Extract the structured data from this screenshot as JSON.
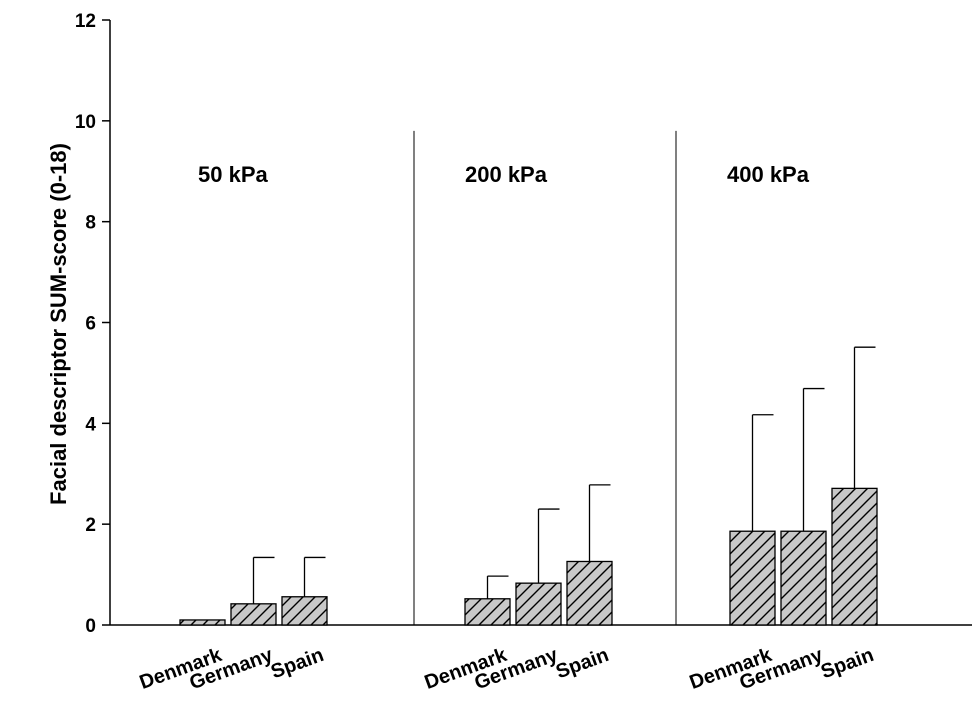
{
  "chart_data": {
    "type": "bar",
    "title": "",
    "xlabel": "",
    "ylabel": "Facial descriptor SUM-score (0-18)",
    "ylim": [
      0,
      12
    ],
    "yticks": [
      0,
      2,
      4,
      6,
      8,
      10,
      12
    ],
    "grid": false,
    "error_bars": "upper",
    "groups": [
      {
        "label": "50 kPa",
        "categories": [
          "Denmark",
          "Germany",
          "Spain"
        ],
        "values": [
          0.1,
          0.42,
          0.56
        ],
        "errors": [
          0,
          0.92,
          0.78
        ]
      },
      {
        "label": "200 kPa",
        "categories": [
          "Denmark",
          "Germany",
          "Spain"
        ],
        "values": [
          0.52,
          0.83,
          1.26
        ],
        "errors": [
          0.45,
          1.47,
          1.52
        ]
      },
      {
        "label": "400 kPa",
        "categories": [
          "Denmark",
          "Germany",
          "Spain"
        ],
        "values": [
          1.86,
          1.86,
          2.71
        ],
        "errors": [
          2.31,
          2.83,
          2.8
        ]
      }
    ],
    "bar_fill": "#c8c8c8",
    "hatch_color": "#000000"
  }
}
